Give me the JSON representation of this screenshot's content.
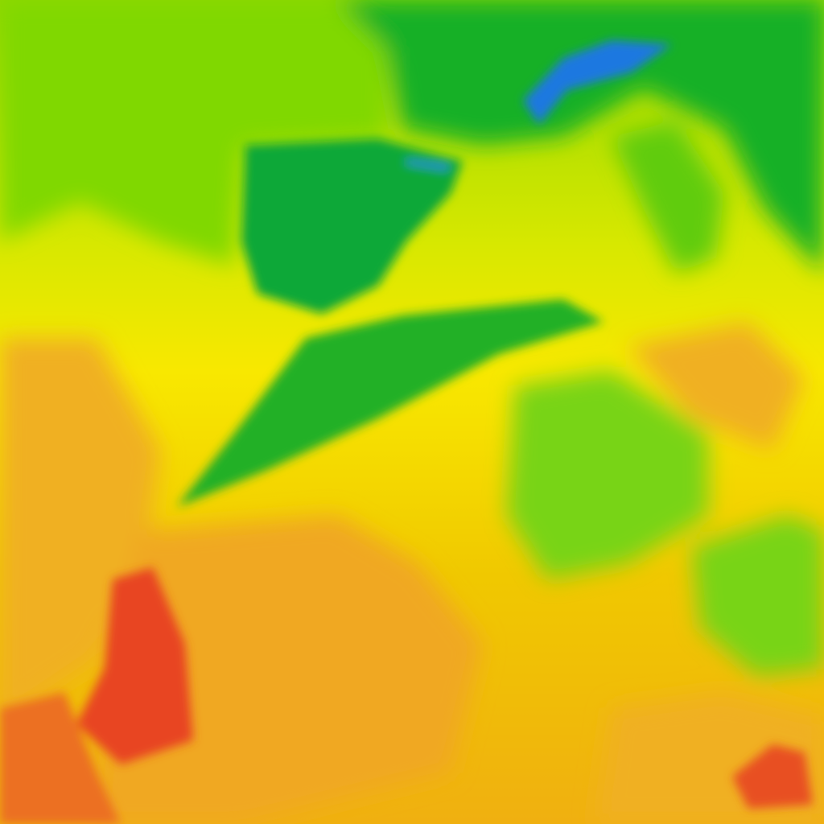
{
  "map": {
    "type": "heatmap-tile",
    "palette": {
      "blue": "#1a6fe0",
      "dark_green": "#10b030",
      "green": "#3cc020",
      "light_green": "#80d800",
      "yellow_green": "#c8e400",
      "yellow": "#f8e800",
      "gold": "#f0c800",
      "orange": "#f0a020",
      "dark_orange": "#ec7a20",
      "red": "#e84020"
    }
  }
}
